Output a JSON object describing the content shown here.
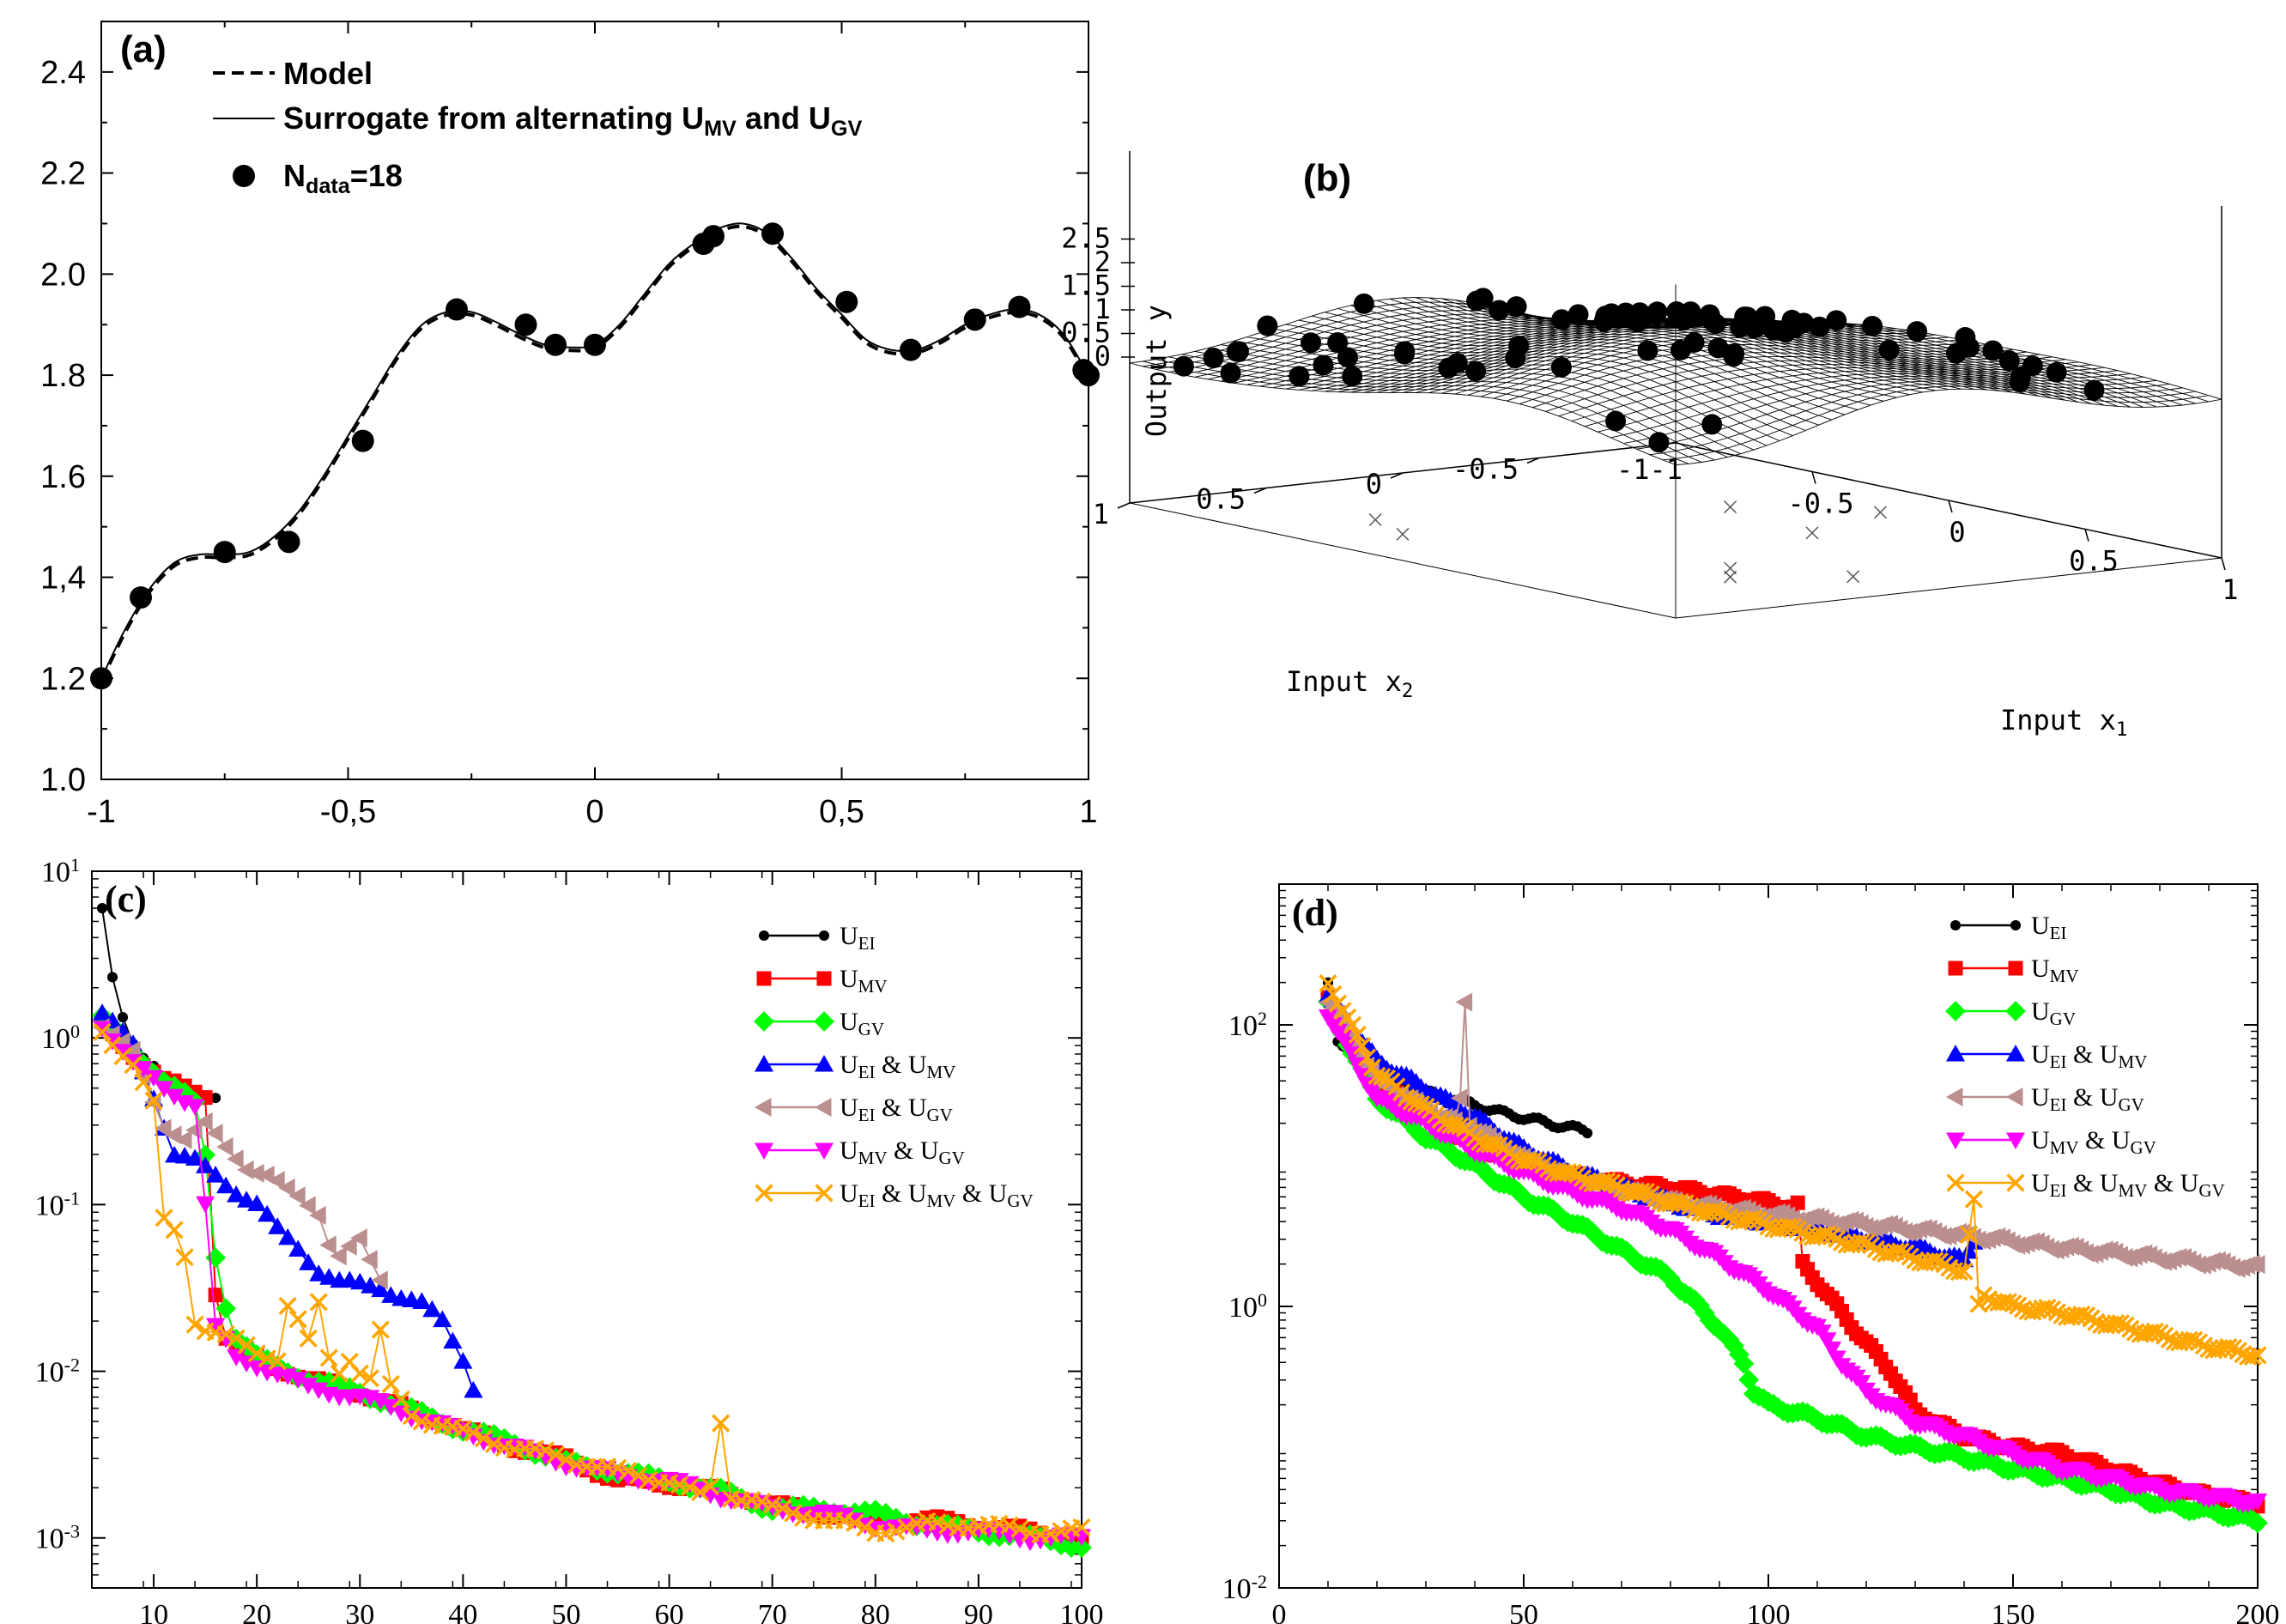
{
  "chart_data": [
    {
      "panel": "(a)",
      "type": "line",
      "xlim": [
        -1,
        1
      ],
      "ylim": [
        1.0,
        2.5
      ],
      "xticks": [
        -1,
        -0.5,
        0,
        0.5,
        1
      ],
      "xtick_labels": [
        "-1",
        "-0,5",
        "0",
        "0,5",
        "1"
      ],
      "yticks": [
        1.0,
        1.2,
        1.4,
        1.6,
        1.8,
        2.0,
        2.2,
        2.4
      ],
      "ytick_labels": [
        "1.0",
        "1.2",
        "1,4",
        "1.6",
        "1.8",
        "2.0",
        "2.2",
        "2.4"
      ],
      "legend": {
        "model": "Model",
        "surrogate_main": "Surrogate from alternating U",
        "surrogate_sub1": "MV",
        "surrogate_and": " and U",
        "surrogate_sub2": "GV",
        "data_main": "N",
        "data_sub": "data",
        "data_tail": "=18"
      },
      "curve_x": [
        -1.0,
        -0.95,
        -0.9,
        -0.85,
        -0.8,
        -0.75,
        -0.7,
        -0.65,
        -0.6,
        -0.55,
        -0.5,
        -0.45,
        -0.4,
        -0.35,
        -0.3,
        -0.25,
        -0.2,
        -0.15,
        -0.1,
        -0.05,
        0.0,
        0.05,
        0.1,
        0.15,
        0.2,
        0.25,
        0.3,
        0.35,
        0.4,
        0.45,
        0.5,
        0.55,
        0.6,
        0.65,
        0.7,
        0.75,
        0.8,
        0.85,
        0.9,
        0.95,
        1.0
      ],
      "curve_y": [
        1.2,
        1.3,
        1.38,
        1.43,
        1.445,
        1.445,
        1.45,
        1.48,
        1.53,
        1.6,
        1.68,
        1.76,
        1.84,
        1.9,
        1.925,
        1.925,
        1.905,
        1.88,
        1.86,
        1.855,
        1.86,
        1.9,
        1.96,
        2.02,
        2.06,
        2.09,
        2.1,
        2.08,
        2.03,
        1.97,
        1.92,
        1.87,
        1.85,
        1.85,
        1.87,
        1.9,
        1.92,
        1.93,
        1.92,
        1.88,
        1.8
      ],
      "points_x": [
        -1.0,
        -0.92,
        -0.75,
        -0.62,
        -0.47,
        -0.28,
        -0.14,
        -0.08,
        0.0,
        0.22,
        0.24,
        0.36,
        0.51,
        0.64,
        0.77,
        0.86,
        0.99,
        1.0
      ],
      "points_y": [
        1.2,
        1.36,
        1.45,
        1.47,
        1.67,
        1.93,
        1.9,
        1.86,
        1.86,
        2.06,
        2.075,
        2.08,
        1.945,
        1.85,
        1.91,
        1.935,
        1.81,
        1.8
      ]
    },
    {
      "panel": "(b)",
      "type": "surface",
      "zlabel": "Output y",
      "xlabel_main": "Input x",
      "xlabel_sub": "1",
      "ylabel_main": "Input x",
      "ylabel_sub": "2",
      "zticks": [
        "2.5",
        "2",
        "1.5",
        "1",
        "0.5",
        "0"
      ],
      "x1_ticks": [
        "-0.5",
        "0",
        "0.5",
        "1"
      ],
      "x2_ticks": [
        "1",
        "0.5",
        "0",
        "-0.5",
        "-1"
      ],
      "corner_label": "-1",
      "n_points": 80
    },
    {
      "panel": "(c)",
      "type": "line",
      "yscale": "log",
      "xlim": [
        4,
        100
      ],
      "ylim_exp": [
        -3.3,
        1
      ],
      "xticks": [
        10,
        20,
        30,
        40,
        50,
        60,
        70,
        80,
        90,
        100
      ],
      "ytick_exps": [
        1,
        0,
        -1,
        -2,
        -3
      ],
      "ytick_base": "10",
      "ytick_exp_labels": [
        "1",
        "0",
        "-1",
        "-2",
        "-3"
      ],
      "series": [
        {
          "label": "U",
          "sub": "EI",
          "color": "#000000",
          "marker": "circle",
          "x": [
            5,
            6,
            7,
            8,
            9,
            10,
            11,
            12,
            13,
            14,
            15,
            16
          ],
          "y": [
            6.0,
            2.4,
            1.4,
            0.95,
            0.75,
            0.65,
            0.55,
            0.52,
            0.5,
            0.48,
            0.46,
            0.44
          ]
        },
        {
          "label": "U",
          "sub": "MV",
          "color": "#ff0000",
          "marker": "square",
          "x": [
            5,
            8,
            11,
            14,
            15,
            16,
            17,
            18,
            20,
            25,
            30,
            35,
            40,
            45,
            50,
            55,
            60,
            65,
            70,
            75,
            80,
            85,
            90,
            95,
            100
          ],
          "y": [
            1.2,
            0.8,
            0.55,
            0.48,
            0.46,
            0.03,
            0.016,
            0.014,
            0.012,
            0.009,
            0.0075,
            0.0058,
            0.0045,
            0.0035,
            0.003,
            0.0022,
            0.0021,
            0.0019,
            0.0016,
            0.0014,
            0.0013,
            0.0013,
            0.0012,
            0.0011,
            0.001
          ]
        },
        {
          "label": "U",
          "sub": "GV",
          "color": "#00ff00",
          "marker": "diamond",
          "x": [
            5,
            8,
            11,
            13,
            14,
            15,
            16,
            17,
            18,
            20,
            25,
            30,
            35,
            40,
            45,
            50,
            55,
            60,
            65,
            70,
            75,
            80,
            85,
            90,
            95,
            100
          ],
          "y": [
            1.3,
            0.85,
            0.55,
            0.45,
            0.4,
            0.2,
            0.05,
            0.025,
            0.016,
            0.012,
            0.009,
            0.0075,
            0.0058,
            0.0045,
            0.0037,
            0.0028,
            0.0025,
            0.0022,
            0.0019,
            0.0015,
            0.0015,
            0.0014,
            0.0012,
            0.0011,
            0.001,
            0.0009
          ]
        },
        {
          "label": "U",
          "sub": "EI",
          "and1": " & U",
          "sub2": "MV",
          "color": "#0000ff",
          "marker": "triangle-up",
          "x": [
            5,
            8,
            10,
            12,
            14,
            16,
            18,
            20,
            22,
            24,
            26,
            28,
            30,
            32,
            34,
            36,
            38,
            40,
            41
          ],
          "y": [
            1.4,
            0.9,
            0.45,
            0.2,
            0.18,
            0.15,
            0.12,
            0.1,
            0.07,
            0.055,
            0.04,
            0.034,
            0.033,
            0.032,
            0.028,
            0.025,
            0.02,
            0.012,
            0.008
          ]
        },
        {
          "label": "U",
          "sub": "EI",
          "and1": " & U",
          "sub2": "GV",
          "color": "#bc8f8f",
          "marker": "triangle-left",
          "x": [
            5,
            8,
            11,
            13,
            15,
            17,
            19,
            21,
            23,
            25,
            26,
            27,
            28,
            29,
            30,
            31,
            32
          ],
          "y": [
            1.2,
            0.8,
            0.3,
            0.25,
            0.3,
            0.22,
            0.17,
            0.15,
            0.12,
            0.1,
            0.09,
            0.06,
            0.05,
            0.055,
            0.06,
            0.045,
            0.035
          ]
        },
        {
          "label": "U",
          "sub": "MV",
          "and1": " & U",
          "sub2": "GV",
          "color": "#ff00ff",
          "marker": "triangle-down",
          "x": [
            5,
            8,
            11,
            14,
            15,
            16,
            17,
            18,
            20,
            25,
            30,
            35,
            40,
            45,
            50,
            55,
            60,
            65,
            70,
            75,
            80,
            85,
            90,
            95,
            100
          ],
          "y": [
            1.2,
            0.7,
            0.5,
            0.4,
            0.1,
            0.018,
            0.015,
            0.012,
            0.011,
            0.008,
            0.007,
            0.0055,
            0.0043,
            0.0035,
            0.0028,
            0.0024,
            0.0022,
            0.0018,
            0.0015,
            0.0014,
            0.0012,
            0.0011,
            0.0011,
            0.001,
            0.001
          ]
        },
        {
          "label": "U",
          "sub": "EI",
          "and1": " & U",
          "sub2": "MV",
          "and2": " & U",
          "sub3": "GV",
          "color": "#ffa500",
          "marker": "x",
          "x": [
            5,
            8,
            10,
            11,
            12,
            13,
            14,
            15,
            16,
            17,
            18,
            20,
            22,
            23,
            24,
            25,
            26,
            27,
            28,
            29,
            30,
            31,
            32,
            33,
            35,
            40,
            45,
            50,
            55,
            60,
            63,
            64,
            65,
            66,
            68,
            70,
            75,
            80,
            85,
            90,
            95,
            100
          ],
          "y": [
            1.1,
            0.7,
            0.4,
            0.08,
            0.07,
            0.05,
            0.02,
            0.018,
            0.017,
            0.016,
            0.015,
            0.013,
            0.012,
            0.025,
            0.02,
            0.015,
            0.025,
            0.012,
            0.01,
            0.012,
            0.01,
            0.009,
            0.017,
            0.008,
            0.0055,
            0.0043,
            0.0035,
            0.003,
            0.0025,
            0.0022,
            0.0018,
            0.002,
            0.005,
            0.0018,
            0.0017,
            0.0015,
            0.0013,
            0.0011,
            0.0012,
            0.0012,
            0.0011,
            0.0011
          ]
        }
      ]
    },
    {
      "panel": "(d)",
      "type": "line",
      "yscale": "log",
      "xlim": [
        0,
        200
      ],
      "ylim_exp": [
        -2,
        3
      ],
      "xticks": [
        0,
        50,
        100,
        150,
        200
      ],
      "ytick_exps": [
        2,
        0,
        -2
      ],
      "ytick_base": "10",
      "ytick_exp_labels": [
        "2",
        "0",
        "-2"
      ],
      "series": [
        {
          "label": "U",
          "sub": "EI",
          "color": "#000000",
          "marker": "circle",
          "x": [
            10,
            12,
            15,
            20,
            25,
            30,
            35,
            40,
            45,
            50,
            55,
            60,
            63
          ],
          "y": [
            200,
            80,
            60,
            45,
            38,
            33,
            30,
            27,
            24,
            22,
            20,
            18.5,
            17.5
          ]
        },
        {
          "label": "U",
          "sub": "MV",
          "color": "#ff0000",
          "marker": "square",
          "x": [
            10,
            20,
            30,
            40,
            50,
            60,
            70,
            80,
            90,
            100,
            105,
            106,
            107,
            110,
            115,
            120,
            125,
            130,
            140,
            150,
            160,
            170,
            180,
            190,
            200
          ],
          "y": [
            150,
            40,
            22,
            14,
            10,
            8.5,
            7.5,
            7.0,
            6.2,
            5.5,
            5.0,
            5.2,
            2.0,
            1.5,
            0.9,
            0.55,
            0.35,
            0.18,
            0.12,
            0.1,
            0.09,
            0.07,
            0.055,
            0.045,
            0.04
          ]
        },
        {
          "label": "U",
          "sub": "GV",
          "color": "#00ff00",
          "marker": "diamond",
          "x": [
            10,
            20,
            30,
            40,
            50,
            60,
            70,
            80,
            90,
            95,
            97,
            100,
            110,
            120,
            130,
            140,
            150,
            160,
            170,
            180,
            190,
            200
          ],
          "y": [
            140,
            30,
            16,
            10,
            6.0,
            4.0,
            2.5,
            1.6,
            0.7,
            0.4,
            0.25,
            0.2,
            0.16,
            0.12,
            0.1,
            0.085,
            0.07,
            0.06,
            0.05,
            0.04,
            0.035,
            0.03
          ]
        },
        {
          "label": "U",
          "sub": "EI",
          "and1": " & U",
          "sub2": "MV",
          "color": "#0000ff",
          "marker": "triangle-up",
          "x": [
            10,
            20,
            30,
            40,
            50,
            60,
            70,
            80,
            90,
            100,
            110,
            120,
            130,
            140,
            142
          ],
          "y": [
            160,
            55,
            35,
            22,
            13,
            9.0,
            7.0,
            5.5,
            4.5,
            4.0,
            3.5,
            3.0,
            2.6,
            2.1,
            3.0
          ]
        },
        {
          "label": "U",
          "sub": "EI",
          "and1": " & U",
          "sub2": "GV",
          "color": "#bc8f8f",
          "marker": "triangle-left",
          "x": [
            10,
            20,
            30,
            36,
            37,
            38,
            39,
            40,
            50,
            60,
            80,
            100,
            120,
            140,
            160,
            180,
            200
          ],
          "y": [
            150,
            40,
            25,
            20,
            30,
            150,
            20,
            18,
            11,
            8,
            5.5,
            4.5,
            3.8,
            3.2,
            2.6,
            2.2,
            1.9
          ]
        },
        {
          "label": "U",
          "sub": "MV",
          "and1": " & U",
          "sub2": "GV",
          "color": "#ff00ff",
          "marker": "triangle-down",
          "x": [
            10,
            20,
            30,
            40,
            50,
            60,
            70,
            80,
            90,
            100,
            110,
            115,
            120,
            130,
            140,
            150,
            160,
            170,
            180,
            190,
            200
          ],
          "y": [
            120,
            30,
            20,
            13,
            9.0,
            6.5,
            5.0,
            3.5,
            2.2,
            1.3,
            0.7,
            0.4,
            0.25,
            0.15,
            0.12,
            0.09,
            0.07,
            0.06,
            0.05,
            0.045,
            0.04
          ]
        },
        {
          "label": "U",
          "sub": "EI",
          "and1": " & U",
          "sub2": "MV",
          "and2": " & U",
          "sub3": "GV",
          "color": "#ffa500",
          "marker": "x",
          "x": [
            10,
            20,
            30,
            40,
            50,
            60,
            70,
            80,
            90,
            100,
            110,
            120,
            130,
            140,
            142,
            143,
            144,
            150,
            160,
            170,
            180,
            190,
            200
          ],
          "y": [
            200,
            45,
            25,
            16,
            11,
            8.5,
            7.0,
            5.5,
            4.5,
            3.8,
            3.2,
            2.7,
            2.2,
            1.8,
            5.5,
            1.0,
            1.2,
            1.0,
            0.9,
            0.75,
            0.62,
            0.52,
            0.45
          ]
        }
      ]
    }
  ]
}
